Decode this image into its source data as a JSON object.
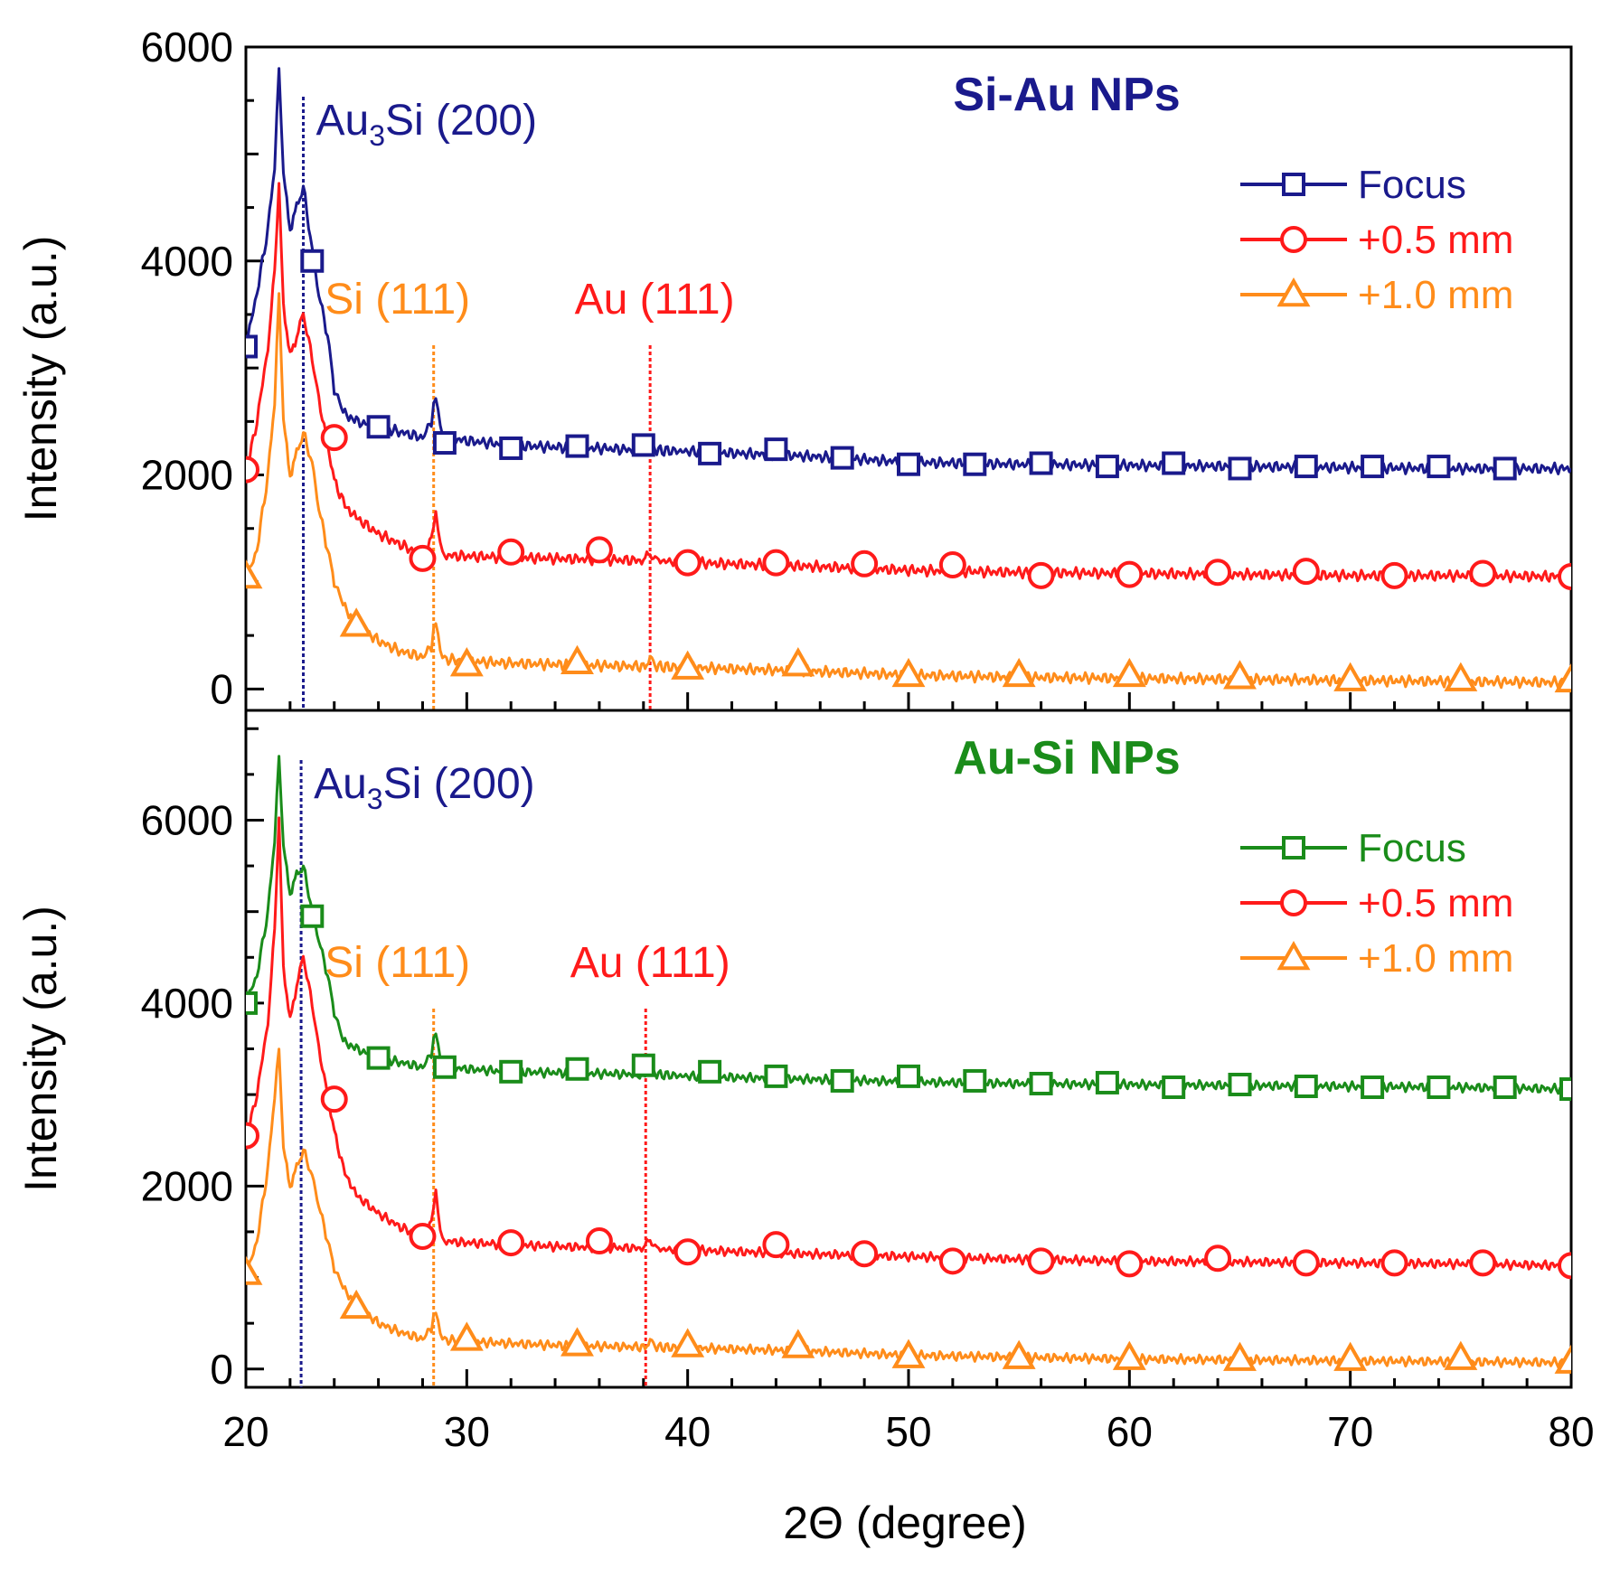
{
  "colors": {
    "navy": "#1a1a8c",
    "red": "#ff1a1a",
    "orange": "#ff8c1a",
    "green": "#1a8c1a",
    "axis": "#000000"
  },
  "chart_data": {
    "type": "line",
    "xlabel": "2Θ (degree)",
    "xlim": [
      20,
      80
    ],
    "xticks": [
      "20",
      "30",
      "40",
      "50",
      "60",
      "70",
      "80"
    ],
    "x": [
      20,
      20.5,
      21,
      21.3,
      21.5,
      21.7,
      22,
      22.3,
      22.6,
      23,
      23.3,
      23.7,
      24,
      24.4,
      25,
      26,
      27,
      28,
      28.4,
      28.6,
      28.8,
      29,
      30,
      32,
      34,
      36,
      38,
      38.3,
      38.6,
      40,
      45,
      50,
      55,
      60,
      65,
      70,
      75,
      80
    ],
    "panels": [
      {
        "title": "Si-Au NPs",
        "title_color": "#1a1a8c",
        "ylabel": "Intensity (a.u.)",
        "ylim": [
          -200,
          6000
        ],
        "yticks": [
          "0",
          "2000",
          "4000",
          "6000"
        ],
        "annotations": [
          {
            "label_main": "Au",
            "label_sub": "3",
            "label_rest": "Si (200)",
            "x": 22.6,
            "color": "#1a1a8c"
          },
          {
            "label_main": "Si (111)",
            "label_sub": "",
            "label_rest": "",
            "x": 28.5,
            "color": "#ff8c1a"
          },
          {
            "label_main": "Au (111)",
            "label_sub": "",
            "label_rest": "",
            "x": 38.3,
            "color": "#ff1a1a"
          }
        ],
        "series": [
          {
            "name": "Focus",
            "color": "#1a1a8c",
            "marker": "square",
            "values": [
              3200,
              3700,
              4300,
              4900,
              5800,
              4800,
              4300,
              4500,
              4700,
              4100,
              3700,
              3300,
              2800,
              2600,
              2500,
              2450,
              2400,
              2350,
              2500,
              2750,
              2450,
              2350,
              2320,
              2280,
              2260,
              2250,
              2230,
              2300,
              2230,
              2220,
              2180,
              2120,
              2100,
              2090,
              2080,
              2070,
              2060,
              2060
            ],
            "markers_x": [
              20,
              23,
              26,
              29,
              32,
              35,
              38,
              41,
              44,
              47,
              50,
              53,
              56,
              59,
              62,
              65,
              68,
              71,
              74,
              77
            ],
            "markers_y": [
              3200,
              4000,
              2450,
              2300,
              2250,
              2270,
              2280,
              2200,
              2240,
              2160,
              2100,
              2100,
              2110,
              2080,
              2110,
              2060,
              2080,
              2080,
              2080,
              2060
            ]
          },
          {
            "name": "+0.5 mm",
            "color": "#ff1a1a",
            "marker": "circle",
            "values": [
              2000,
              2500,
              3200,
              3900,
              4700,
              3600,
              3100,
              3300,
              3500,
              3100,
              2700,
              2300,
              1950,
              1750,
              1600,
              1450,
              1350,
              1250,
              1400,
              1650,
              1350,
              1250,
              1240,
              1230,
              1220,
              1210,
              1200,
              1270,
              1200,
              1180,
              1150,
              1110,
              1090,
              1080,
              1070,
              1060,
              1060,
              1050
            ],
            "markers_x": [
              20,
              24,
              28,
              32,
              36,
              40,
              44,
              48,
              52,
              56,
              60,
              64,
              68,
              72,
              76,
              80
            ],
            "markers_y": [
              2050,
              2350,
              1220,
              1280,
              1300,
              1180,
              1180,
              1170,
              1160,
              1060,
              1070,
              1090,
              1100,
              1060,
              1080,
              1050
            ]
          },
          {
            "name": "+1.0 mm",
            "color": "#ff8c1a",
            "marker": "triangle",
            "values": [
              1000,
              1300,
              2000,
              2700,
              3700,
              2500,
              2000,
              2200,
              2400,
              2100,
              1700,
              1300,
              1000,
              800,
              600,
              450,
              350,
              300,
              400,
              650,
              350,
              280,
              260,
              240,
              230,
              220,
              210,
              280,
              210,
              200,
              170,
              130,
              110,
              100,
              90,
              80,
              70,
              60
            ],
            "markers_x": [
              20,
              25,
              30,
              35,
              40,
              45,
              50,
              55,
              60,
              65,
              70,
              75,
              80
            ],
            "markers_y": [
              1050,
              600,
              230,
              250,
              200,
              230,
              130,
              130,
              130,
              110,
              90,
              90,
              80
            ]
          }
        ]
      },
      {
        "title": "Au-Si NPs",
        "title_color": "#1a8c1a",
        "ylabel": "Intensity (a.u.)",
        "ylim": [
          -200,
          7200
        ],
        "yticks": [
          "0",
          "2000",
          "4000",
          "6000"
        ],
        "annotations": [
          {
            "label_main": "Au",
            "label_sub": "3",
            "label_rest": "Si (200)",
            "x": 22.5,
            "color": "#1a1a8c"
          },
          {
            "label_main": "Si (111)",
            "label_sub": "",
            "label_rest": "",
            "x": 28.5,
            "color": "#ff8c1a"
          },
          {
            "label_main": "Au (111)",
            "label_sub": "",
            "label_rest": "",
            "x": 38.1,
            "color": "#ff1a1a"
          }
        ],
        "series": [
          {
            "name": "Focus",
            "color": "#1a8c1a",
            "marker": "square",
            "values": [
              4000,
              4300,
              5000,
              5800,
              6700,
              5700,
              5200,
              5400,
              5500,
              5000,
              4700,
              4300,
              3900,
              3600,
              3500,
              3400,
              3350,
              3300,
              3450,
              3700,
              3380,
              3300,
              3280,
              3250,
              3240,
              3230,
              3220,
              3300,
              3220,
              3200,
              3170,
              3140,
              3120,
              3110,
              3100,
              3090,
              3080,
              3060
            ],
            "markers_x": [
              20,
              23,
              26,
              29,
              32,
              35,
              38,
              41,
              44,
              47,
              50,
              53,
              56,
              59,
              62,
              65,
              68,
              71,
              74,
              77,
              80
            ],
            "markers_y": [
              4000,
              4950,
              3400,
              3300,
              3250,
              3280,
              3320,
              3250,
              3200,
              3150,
              3200,
              3150,
              3120,
              3130,
              3080,
              3110,
              3090,
              3080,
              3080,
              3080,
              3060
            ]
          },
          {
            "name": "+0.5 mm",
            "color": "#ff1a1a",
            "marker": "circle",
            "values": [
              2500,
              3000,
              3800,
              4800,
              6000,
              4400,
              3800,
              4200,
              4500,
              4000,
              3500,
              3000,
              2600,
              2200,
              1900,
              1700,
              1550,
              1450,
              1600,
              1950,
              1500,
              1400,
              1380,
              1360,
              1340,
              1330,
              1320,
              1420,
              1310,
              1300,
              1260,
              1230,
              1200,
              1180,
              1170,
              1160,
              1150,
              1130
            ],
            "markers_x": [
              20,
              24,
              28,
              32,
              36,
              40,
              44,
              48,
              52,
              56,
              60,
              64,
              68,
              72,
              76,
              80
            ],
            "markers_y": [
              2550,
              2950,
              1450,
              1380,
              1400,
              1280,
              1360,
              1260,
              1180,
              1180,
              1150,
              1210,
              1160,
              1160,
              1160,
              1130
            ]
          },
          {
            "name": "+1.0 mm",
            "color": "#ff8c1a",
            "marker": "triangle",
            "values": [
              1000,
              1400,
              2200,
              3000,
              3500,
              2400,
              2000,
              2200,
              2400,
              2100,
              1800,
              1400,
              1100,
              900,
              700,
              500,
              400,
              330,
              450,
              650,
              380,
              320,
              300,
              280,
              260,
              250,
              240,
              300,
              240,
              230,
              200,
              150,
              130,
              110,
              100,
              90,
              80,
              70
            ],
            "markers_x": [
              20,
              25,
              30,
              35,
              40,
              45,
              50,
              55,
              60,
              65,
              70,
              75,
              80
            ],
            "markers_y": [
              1050,
              680,
              330,
              270,
              260,
              250,
              140,
              130,
              120,
              110,
              110,
              120,
              80
            ]
          }
        ]
      }
    ]
  }
}
